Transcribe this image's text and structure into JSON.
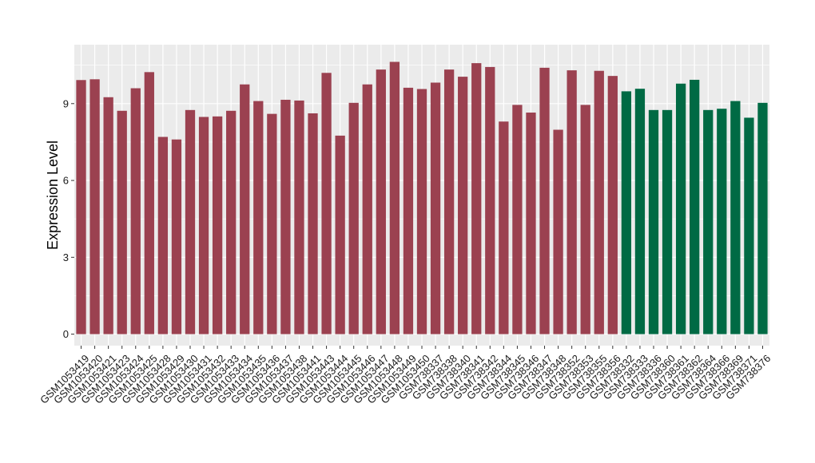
{
  "chart_data": {
    "type": "bar",
    "ylabel": "Expression Level",
    "xlabel": "",
    "title": "",
    "ylim": [
      -0.45,
      11.3
    ],
    "yticks": [
      0,
      3,
      6,
      9
    ],
    "grid": true,
    "legend": "none",
    "categories": [
      "GSM1053419",
      "GSM1053420",
      "GSM1053421",
      "GSM1053423",
      "GSM1053424",
      "GSM1053425",
      "GSM1053428",
      "GSM1053429",
      "GSM1053430",
      "GSM1053431",
      "GSM1053432",
      "GSM1053433",
      "GSM1053434",
      "GSM1053435",
      "GSM1053436",
      "GSM1053437",
      "GSM1053438",
      "GSM1053441",
      "GSM1053443",
      "GSM1053444",
      "GSM1053445",
      "GSM1053446",
      "GSM1053447",
      "GSM1053448",
      "GSM1053449",
      "GSM1053450",
      "GSM738337",
      "GSM738338",
      "GSM738340",
      "GSM738341",
      "GSM738342",
      "GSM738344",
      "GSM738345",
      "GSM738346",
      "GSM738347",
      "GSM738348",
      "GSM738352",
      "GSM738353",
      "GSM738355",
      "GSM738356",
      "GSM738332",
      "GSM738333",
      "GSM738336",
      "GSM738360",
      "GSM738361",
      "GSM738362",
      "GSM738364",
      "GSM738366",
      "GSM738369",
      "GSM738371",
      "GSM738376"
    ],
    "values": [
      9.92,
      9.95,
      9.25,
      8.72,
      9.6,
      10.23,
      7.7,
      7.6,
      8.75,
      8.48,
      8.5,
      8.72,
      9.75,
      9.1,
      8.6,
      9.15,
      9.12,
      8.62,
      10.2,
      7.75,
      9.03,
      9.75,
      10.33,
      10.63,
      9.62,
      9.57,
      9.82,
      10.33,
      10.05,
      10.58,
      10.43,
      8.3,
      8.95,
      8.65,
      10.4,
      7.98,
      10.3,
      8.95,
      10.28,
      10.08,
      9.48,
      9.58,
      8.75,
      8.75,
      9.78,
      9.93,
      8.75,
      8.8,
      9.1,
      8.45,
      9.03
    ],
    "groups": [
      "a",
      "a",
      "a",
      "a",
      "a",
      "a",
      "a",
      "a",
      "a",
      "a",
      "a",
      "a",
      "a",
      "a",
      "a",
      "a",
      "a",
      "a",
      "a",
      "a",
      "a",
      "a",
      "a",
      "a",
      "a",
      "a",
      "a",
      "a",
      "a",
      "a",
      "a",
      "a",
      "a",
      "a",
      "a",
      "a",
      "a",
      "a",
      "a",
      "a",
      "b",
      "b",
      "b",
      "b",
      "b",
      "b",
      "b",
      "b",
      "b",
      "b",
      "b"
    ],
    "colors": {
      "a": "#9b4150",
      "b": "#006a44",
      "panel": "#ebebeb",
      "grid": "#ffffff",
      "tick": "#333333"
    }
  }
}
